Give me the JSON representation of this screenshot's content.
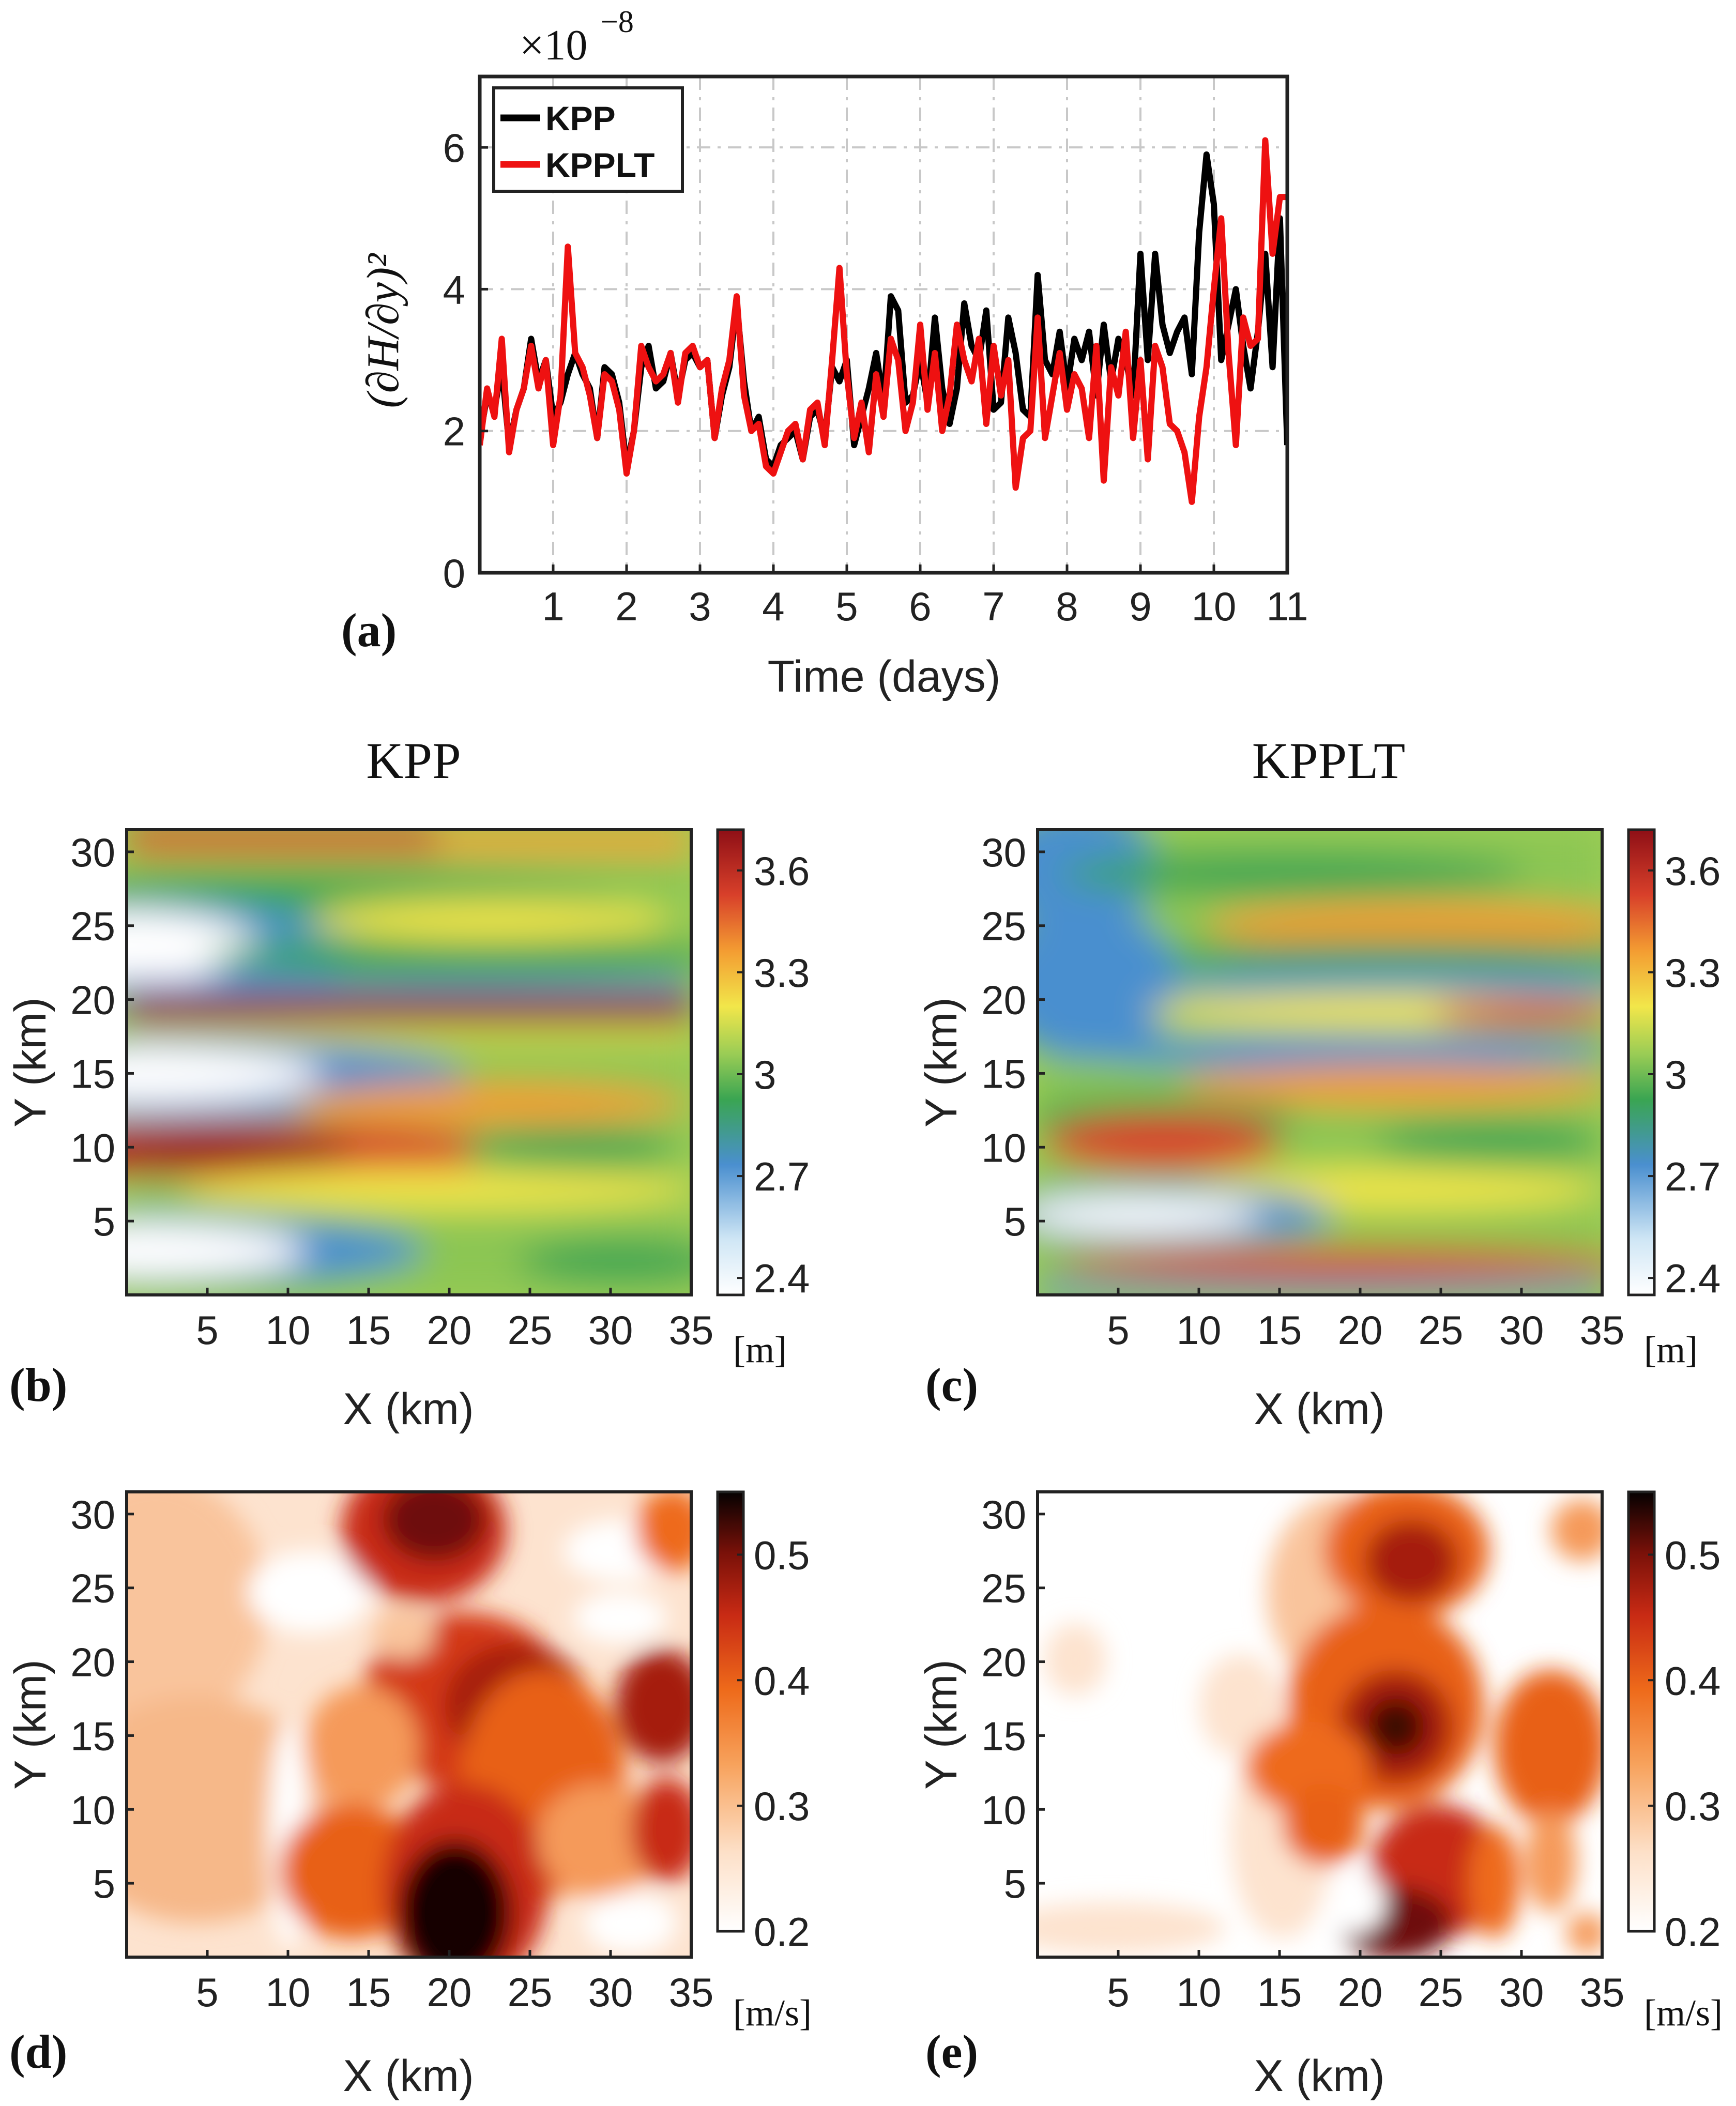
{
  "chart_data": [
    {
      "id": "a",
      "type": "line",
      "panel_label": "(a)",
      "scale_label_base": "×10",
      "scale_label_exp": "−8",
      "xlabel": "Time (days)",
      "ylabel": "(∂H/∂y)²",
      "xlim": [
        0,
        11
      ],
      "ylim": [
        0,
        7
      ],
      "xticks": [
        1,
        2,
        3,
        4,
        5,
        6,
        7,
        8,
        9,
        10,
        11
      ],
      "yticks": [
        0,
        2,
        4,
        6
      ],
      "grid": true,
      "legend_position": "top-left",
      "series": [
        {
          "name": "KPP",
          "color": "#000000",
          "x": [
            0,
            0.1,
            0.2,
            0.3,
            0.4,
            0.5,
            0.6,
            0.7,
            0.8,
            0.9,
            1.0,
            1.1,
            1.2,
            1.3,
            1.4,
            1.5,
            1.6,
            1.7,
            1.8,
            1.9,
            2.0,
            2.1,
            2.2,
            2.3,
            2.4,
            2.5,
            2.6,
            2.7,
            2.8,
            2.9,
            3.0,
            3.1,
            3.2,
            3.3,
            3.4,
            3.5,
            3.6,
            3.7,
            3.8,
            3.9,
            4.0,
            4.1,
            4.2,
            4.3,
            4.4,
            4.5,
            4.6,
            4.7,
            4.8,
            4.9,
            5.0,
            5.1,
            5.2,
            5.3,
            5.4,
            5.5,
            5.6,
            5.7,
            5.8,
            5.9,
            6.0,
            6.1,
            6.2,
            6.3,
            6.4,
            6.5,
            6.6,
            6.7,
            6.8,
            6.9,
            7.0,
            7.1,
            7.2,
            7.3,
            7.4,
            7.5,
            7.6,
            7.7,
            7.8,
            7.9,
            8.0,
            8.1,
            8.2,
            8.3,
            8.4,
            8.5,
            8.6,
            8.7,
            8.8,
            8.9,
            9.0,
            9.1,
            9.2,
            9.3,
            9.4,
            9.5,
            9.6,
            9.7,
            9.8,
            9.9,
            10.0,
            10.1,
            10.2,
            10.3,
            10.4,
            10.5,
            10.6,
            10.7,
            10.8,
            10.9,
            11.0
          ],
          "y": [
            1.9,
            2.5,
            2.3,
            2.9,
            1.8,
            2.3,
            2.6,
            3.3,
            2.7,
            3.0,
            2.2,
            2.4,
            2.8,
            3.1,
            2.8,
            2.6,
            1.9,
            2.9,
            2.8,
            2.4,
            1.5,
            2.0,
            2.9,
            3.2,
            2.6,
            2.7,
            3.1,
            2.5,
            3.0,
            3.1,
            2.9,
            3.0,
            1.9,
            2.5,
            2.9,
            3.8,
            2.7,
            2.0,
            2.2,
            1.6,
            1.5,
            1.8,
            1.9,
            2.0,
            1.6,
            2.2,
            2.3,
            1.9,
            2.9,
            2.7,
            3.0,
            1.8,
            2.2,
            2.6,
            3.1,
            2.4,
            3.9,
            3.7,
            2.4,
            2.5,
            3.0,
            2.4,
            3.6,
            2.6,
            2.1,
            2.6,
            3.8,
            3.2,
            3.0,
            3.7,
            2.3,
            2.4,
            3.6,
            3.1,
            2.3,
            2.2,
            4.2,
            3.0,
            2.8,
            3.4,
            2.6,
            3.3,
            3.0,
            3.4,
            2.5,
            3.5,
            2.7,
            3.3,
            3.0,
            2.5,
            4.5,
            3.0,
            4.5,
            3.5,
            3.1,
            3.4,
            3.6,
            2.8,
            4.8,
            5.9,
            5.2,
            3.0,
            3.5,
            4.0,
            3.2,
            2.6,
            3.4,
            4.5,
            2.9,
            5.0,
            1.8
          ]
        },
        {
          "name": "KPPLT",
          "color": "#ee1111",
          "x": [
            0,
            0.1,
            0.2,
            0.3,
            0.4,
            0.5,
            0.6,
            0.7,
            0.8,
            0.9,
            1.0,
            1.1,
            1.2,
            1.3,
            1.4,
            1.5,
            1.6,
            1.7,
            1.8,
            1.9,
            2.0,
            2.1,
            2.2,
            2.3,
            2.4,
            2.5,
            2.6,
            2.7,
            2.8,
            2.9,
            3.0,
            3.1,
            3.2,
            3.3,
            3.4,
            3.5,
            3.6,
            3.7,
            3.8,
            3.9,
            4.0,
            4.1,
            4.2,
            4.3,
            4.4,
            4.5,
            4.6,
            4.7,
            4.8,
            4.9,
            5.0,
            5.1,
            5.2,
            5.3,
            5.4,
            5.5,
            5.6,
            5.7,
            5.8,
            5.9,
            6.0,
            6.1,
            6.2,
            6.3,
            6.4,
            6.5,
            6.6,
            6.7,
            6.8,
            6.9,
            7.0,
            7.1,
            7.2,
            7.3,
            7.4,
            7.5,
            7.6,
            7.7,
            7.8,
            7.9,
            8.0,
            8.1,
            8.2,
            8.3,
            8.4,
            8.5,
            8.6,
            8.7,
            8.8,
            8.9,
            9.0,
            9.1,
            9.2,
            9.3,
            9.4,
            9.5,
            9.6,
            9.7,
            9.8,
            9.9,
            10.0,
            10.1,
            10.2,
            10.3,
            10.4,
            10.5,
            10.6,
            10.7,
            10.8,
            10.9,
            11.0
          ],
          "y": [
            1.8,
            2.6,
            2.2,
            3.3,
            1.7,
            2.3,
            2.6,
            3.2,
            2.6,
            3.0,
            1.8,
            2.5,
            4.6,
            3.1,
            2.9,
            2.5,
            1.9,
            2.8,
            2.7,
            2.3,
            1.4,
            2.0,
            3.2,
            2.9,
            2.7,
            2.8,
            3.1,
            2.4,
            3.1,
            3.2,
            2.9,
            3.0,
            1.9,
            2.6,
            3.0,
            3.9,
            2.5,
            2.0,
            2.1,
            1.5,
            1.4,
            1.7,
            2.0,
            2.1,
            1.6,
            2.3,
            2.4,
            1.8,
            3.0,
            4.3,
            2.8,
            1.9,
            2.4,
            1.7,
            2.8,
            2.2,
            3.3,
            3.0,
            2.0,
            2.4,
            3.5,
            2.3,
            3.1,
            2.0,
            2.5,
            3.5,
            3.0,
            2.7,
            3.3,
            2.1,
            3.2,
            2.5,
            3.0,
            1.2,
            1.9,
            2.0,
            3.6,
            1.9,
            2.5,
            3.1,
            2.3,
            2.8,
            2.6,
            1.9,
            3.2,
            1.3,
            2.9,
            2.5,
            3.4,
            1.9,
            3.0,
            1.6,
            3.2,
            2.9,
            2.1,
            2.0,
            1.7,
            1.0,
            2.2,
            2.9,
            4.0,
            5.0,
            3.1,
            1.8,
            3.6,
            3.2,
            3.3,
            6.1,
            4.5,
            5.3,
            5.3
          ]
        }
      ]
    },
    {
      "id": "b",
      "type": "contour",
      "column_title": "KPP",
      "panel_label": "(b)",
      "xlabel": "X (km)",
      "ylabel": "Y (km)",
      "units_label": "[m]",
      "xlim": [
        0,
        35
      ],
      "ylim": [
        0,
        31.5
      ],
      "xticks": [
        5,
        10,
        15,
        20,
        25,
        30,
        35
      ],
      "yticks": [
        5,
        10,
        15,
        20,
        25,
        30
      ],
      "colorbar_ticks": [
        "2.4",
        "2.7",
        "3",
        "3.3",
        "3.6"
      ],
      "colorbar_range": [
        2.35,
        3.72
      ],
      "colormap": "spectral"
    },
    {
      "id": "c",
      "type": "contour",
      "column_title": "KPPLT",
      "panel_label": "(c)",
      "xlabel": "X (km)",
      "ylabel": "Y (km)",
      "units_label": "[m]",
      "xlim": [
        0,
        35
      ],
      "ylim": [
        0,
        31.5
      ],
      "xticks": [
        5,
        10,
        15,
        20,
        25,
        30,
        35
      ],
      "yticks": [
        5,
        10,
        15,
        20,
        25,
        30
      ],
      "colorbar_ticks": [
        "2.4",
        "2.7",
        "3",
        "3.3",
        "3.6"
      ],
      "colorbar_range": [
        2.35,
        3.72
      ],
      "colormap": "spectral"
    },
    {
      "id": "d",
      "type": "contour",
      "panel_label": "(d)",
      "xlabel": "X (km)",
      "ylabel": "Y (km)",
      "units_label": "[m/s]",
      "xlim": [
        0,
        35
      ],
      "ylim": [
        0,
        31.5
      ],
      "xticks": [
        5,
        10,
        15,
        20,
        25,
        30,
        35
      ],
      "yticks": [
        5,
        10,
        15,
        20,
        25,
        30
      ],
      "colorbar_ticks": [
        "0.2",
        "0.3",
        "0.4",
        "0.5"
      ],
      "colorbar_range": [
        0.2,
        0.55
      ],
      "colormap": "hot"
    },
    {
      "id": "e",
      "type": "contour",
      "panel_label": "(e)",
      "xlabel": "X (km)",
      "ylabel": "Y (km)",
      "units_label": "[m/s]",
      "xlim": [
        0,
        35
      ],
      "ylim": [
        0,
        31.5
      ],
      "xticks": [
        5,
        10,
        15,
        20,
        25,
        30,
        35
      ],
      "yticks": [
        5,
        10,
        15,
        20,
        25,
        30
      ],
      "colorbar_ticks": [
        "0.2",
        "0.3",
        "0.4",
        "0.5"
      ],
      "colorbar_range": [
        0.2,
        0.55
      ],
      "colormap": "hot"
    }
  ],
  "colors": {
    "axis": "#222222",
    "grid": "#c8c8c8",
    "kpp_line": "#000000",
    "kpplt_line": "#ee1111"
  }
}
